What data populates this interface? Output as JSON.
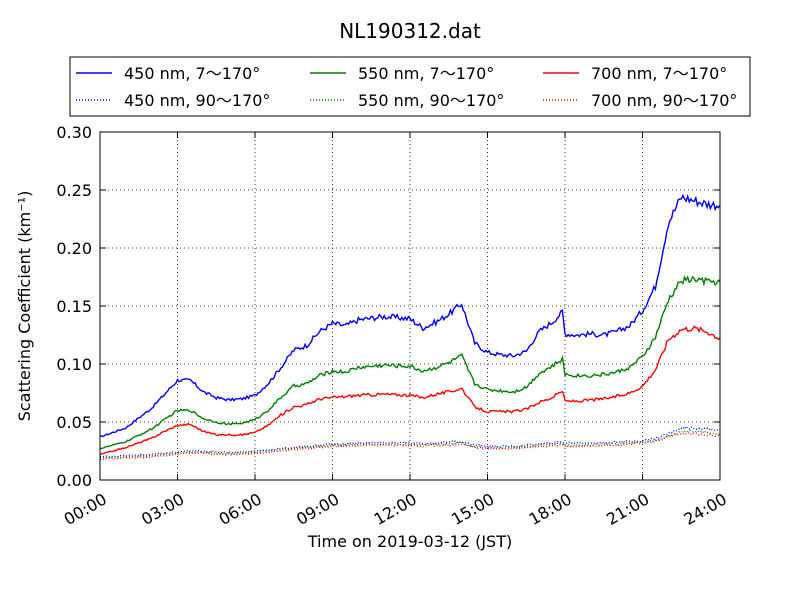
{
  "chart_data": {
    "type": "line",
    "title": "NL190312.dat",
    "xlabel": "Time on 2019-03-12 (JST)",
    "ylabel": "Scattering Coefficient (km⁻¹)",
    "xlim": [
      0,
      24
    ],
    "ylim": [
      0,
      0.3
    ],
    "x_ticks": [
      "00:00",
      "03:00",
      "06:00",
      "09:00",
      "12:00",
      "15:00",
      "18:00",
      "21:00",
      "24:00"
    ],
    "y_ticks": [
      "0.00",
      "0.05",
      "0.10",
      "0.15",
      "0.20",
      "0.25",
      "0.30"
    ],
    "grid": true,
    "legend_position": "top",
    "x": [
      0,
      1,
      2,
      2.5,
      3,
      3.5,
      4,
      4.5,
      5,
      5.5,
      6,
      6.5,
      7,
      7.5,
      8,
      8.5,
      9,
      9.5,
      10,
      11,
      12,
      12.5,
      13,
      13.5,
      14,
      14.5,
      15,
      15.5,
      16,
      16.5,
      17,
      17.5,
      17.9,
      18,
      18.5,
      19,
      19.5,
      20,
      20.5,
      21,
      21.5,
      22,
      22.5,
      23,
      23.5,
      24
    ],
    "series": [
      {
        "name": "450 nm, 7～170°",
        "style": "solid",
        "color": "#0000ff",
        "values": [
          0.037,
          0.045,
          0.062,
          0.074,
          0.086,
          0.086,
          0.076,
          0.071,
          0.069,
          0.07,
          0.073,
          0.083,
          0.097,
          0.112,
          0.116,
          0.128,
          0.135,
          0.133,
          0.138,
          0.141,
          0.139,
          0.131,
          0.136,
          0.143,
          0.152,
          0.118,
          0.11,
          0.108,
          0.107,
          0.111,
          0.128,
          0.136,
          0.145,
          0.126,
          0.125,
          0.126,
          0.125,
          0.128,
          0.133,
          0.146,
          0.167,
          0.222,
          0.244,
          0.241,
          0.238,
          0.237
        ]
      },
      {
        "name": "550 nm, 7～170°",
        "style": "solid",
        "color": "#008000",
        "values": [
          0.027,
          0.033,
          0.044,
          0.052,
          0.06,
          0.06,
          0.053,
          0.05,
          0.048,
          0.049,
          0.052,
          0.06,
          0.071,
          0.081,
          0.083,
          0.09,
          0.094,
          0.093,
          0.097,
          0.099,
          0.098,
          0.094,
          0.097,
          0.101,
          0.107,
          0.083,
          0.078,
          0.077,
          0.076,
          0.08,
          0.092,
          0.098,
          0.104,
          0.091,
          0.09,
          0.09,
          0.091,
          0.093,
          0.097,
          0.106,
          0.123,
          0.155,
          0.172,
          0.173,
          0.171,
          0.171
        ]
      },
      {
        "name": "700 nm, 7～170°",
        "style": "solid",
        "color": "#ff0000",
        "values": [
          0.022,
          0.028,
          0.036,
          0.042,
          0.047,
          0.048,
          0.042,
          0.039,
          0.039,
          0.039,
          0.041,
          0.047,
          0.056,
          0.063,
          0.065,
          0.07,
          0.071,
          0.072,
          0.073,
          0.074,
          0.073,
          0.071,
          0.074,
          0.076,
          0.079,
          0.063,
          0.059,
          0.059,
          0.059,
          0.061,
          0.067,
          0.071,
          0.077,
          0.068,
          0.068,
          0.069,
          0.07,
          0.072,
          0.075,
          0.081,
          0.095,
          0.121,
          0.13,
          0.131,
          0.128,
          0.122
        ]
      },
      {
        "name": "450 nm, 90～170°",
        "style": "dotted",
        "color": "#0000ff",
        "values": [
          0.02,
          0.021,
          0.022,
          0.023,
          0.024,
          0.025,
          0.025,
          0.024,
          0.024,
          0.024,
          0.025,
          0.026,
          0.027,
          0.028,
          0.029,
          0.03,
          0.031,
          0.031,
          0.032,
          0.032,
          0.032,
          0.031,
          0.032,
          0.033,
          0.033,
          0.03,
          0.029,
          0.029,
          0.029,
          0.03,
          0.031,
          0.032,
          0.033,
          0.032,
          0.032,
          0.032,
          0.032,
          0.033,
          0.033,
          0.034,
          0.036,
          0.04,
          0.045,
          0.045,
          0.044,
          0.043
        ]
      },
      {
        "name": "550 nm, 90～170°",
        "style": "dotted",
        "color": "#008000",
        "values": [
          0.019,
          0.02,
          0.021,
          0.022,
          0.023,
          0.024,
          0.024,
          0.023,
          0.023,
          0.023,
          0.024,
          0.025,
          0.026,
          0.027,
          0.028,
          0.029,
          0.03,
          0.03,
          0.031,
          0.031,
          0.031,
          0.03,
          0.031,
          0.031,
          0.032,
          0.029,
          0.028,
          0.028,
          0.028,
          0.029,
          0.03,
          0.031,
          0.031,
          0.03,
          0.03,
          0.03,
          0.031,
          0.031,
          0.032,
          0.033,
          0.034,
          0.038,
          0.042,
          0.042,
          0.041,
          0.04
        ]
      },
      {
        "name": "700 nm, 90～170°",
        "style": "dotted",
        "color": "#ff0000",
        "values": [
          0.018,
          0.019,
          0.02,
          0.021,
          0.022,
          0.023,
          0.023,
          0.022,
          0.022,
          0.022,
          0.023,
          0.024,
          0.025,
          0.026,
          0.027,
          0.028,
          0.029,
          0.029,
          0.03,
          0.03,
          0.03,
          0.029,
          0.03,
          0.03,
          0.031,
          0.028,
          0.027,
          0.027,
          0.027,
          0.028,
          0.029,
          0.03,
          0.03,
          0.029,
          0.029,
          0.029,
          0.03,
          0.03,
          0.031,
          0.032,
          0.033,
          0.037,
          0.04,
          0.04,
          0.039,
          0.038
        ]
      }
    ]
  }
}
